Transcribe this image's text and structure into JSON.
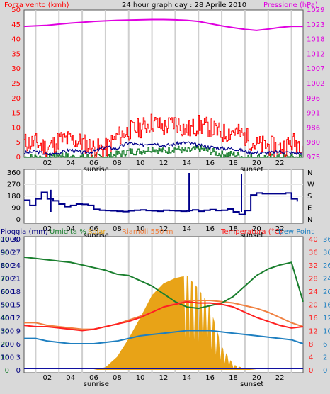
{
  "header": {
    "left": "Forza vento (kmh)",
    "center": "24 hour graph day : 28 Aprile 2010",
    "right": "Pressione (hPa)"
  },
  "x_axis": {
    "hours": [
      "02",
      "04",
      "06",
      "08",
      "10",
      "12",
      "14",
      "16",
      "18",
      "20",
      "22"
    ],
    "sunrise": "sunrise",
    "sunset": "sunset"
  },
  "colors": {
    "wind_label": "#ff0000",
    "pressure": "#e000e0",
    "gust": "#ff0000",
    "dir": "#00008b",
    "humidity": "#1a7f2e",
    "solar": "#e8a317",
    "temp": "#ff2020",
    "dew": "#1e7fc0",
    "riamoli": "#f08040",
    "rain": "#1010a0",
    "axis_left2": "#000080"
  },
  "panel2": {
    "compass": [
      "N",
      "W",
      "S",
      "E",
      "N"
    ]
  },
  "panel3": {
    "labels": {
      "rain": "Pioggia (mm)",
      "humidity": "Umidita %",
      "solar": "Solar",
      "riamoli": "Riamoli 550 m",
      "temp": "Temperatura (°C)",
      "dew": "Dew Point"
    }
  },
  "chart_data": [
    {
      "type": "line",
      "title": "24 hour graph day : 28 Aprile 2010",
      "ylabel": "Forza vento (kmh)",
      "y2label": "Pressione (hPa)",
      "ylim": [
        0,
        50
      ],
      "y_ticks": [
        0,
        5,
        10,
        15,
        20,
        25,
        30,
        35,
        40,
        45,
        50
      ],
      "y2_ticks": [
        975,
        980,
        986,
        991,
        996,
        1002,
        1007,
        1012,
        1018,
        1023,
        1029
      ],
      "y2lim": [
        975,
        1029
      ],
      "x": [
        0,
        1,
        2,
        3,
        4,
        5,
        6,
        7,
        8,
        9,
        10,
        11,
        12,
        13,
        14,
        15,
        16,
        17,
        18,
        19,
        20,
        21,
        22,
        23,
        24
      ],
      "series": [
        {
          "name": "Pressione (hPa)",
          "values": [
            1023,
            1023.2,
            1023.4,
            1023.8,
            1024.2,
            1024.5,
            1024.8,
            1025,
            1025.2,
            1025.3,
            1025.4,
            1025.5,
            1025.5,
            1025.4,
            1025.2,
            1024.8,
            1024,
            1023.2,
            1022.5,
            1021.9,
            1021.5,
            1022,
            1022.6,
            1023,
            1023
          ]
        },
        {
          "name": "raffica",
          "values": [
            5,
            5,
            3,
            6,
            6,
            5,
            3,
            3,
            7,
            9,
            10,
            12,
            10,
            12,
            9,
            11,
            10,
            8,
            9,
            7,
            4,
            4,
            3,
            5,
            5
          ]
        },
        {
          "name": "vento medio",
          "values": [
            1.5,
            2,
            1,
            1.5,
            2.5,
            1.5,
            2,
            3.5,
            3,
            5,
            4,
            5,
            4,
            4.5,
            5,
            4,
            3.5,
            3,
            3,
            2,
            1.5,
            1.5,
            2,
            1.5,
            1.5
          ]
        },
        {
          "name": "vento min",
          "values": [
            0,
            0,
            0,
            1,
            0,
            0,
            0,
            0,
            1,
            2,
            2,
            3,
            2,
            3,
            2,
            3,
            2,
            1,
            1,
            0,
            0,
            0,
            0,
            0,
            0
          ]
        }
      ]
    },
    {
      "type": "line",
      "ylabel": "",
      "ylim": [
        0,
        360
      ],
      "y_ticks": [
        0,
        90,
        180,
        270,
        360
      ],
      "x": [
        0,
        0.5,
        1,
        1.5,
        2,
        2.5,
        3,
        3.5,
        4,
        4.5,
        5,
        5.5,
        6,
        6.5,
        7,
        7.5,
        8,
        8.5,
        9,
        9.5,
        10,
        10.5,
        11,
        11.5,
        12,
        12.5,
        13,
        13.5,
        14,
        14.5,
        15,
        15.5,
        16,
        16.5,
        17,
        17.5,
        18,
        18.5,
        19,
        19.5,
        20,
        20.5,
        21,
        21.5,
        22,
        22.5,
        23,
        23.5
      ],
      "series": [
        {
          "name": "direzione",
          "values": [
            150,
            110,
            160,
            210,
            160,
            145,
            120,
            100,
            110,
            120,
            118,
            110,
            80,
            72,
            70,
            68,
            65,
            62,
            68,
            72,
            75,
            70,
            68,
            65,
            72,
            70,
            68,
            65,
            70,
            75,
            65,
            72,
            78,
            70,
            72,
            82,
            60,
            40,
            70,
            190,
            205,
            200,
            200,
            200,
            200,
            205,
            160,
            140
          ]
        }
      ]
    },
    {
      "type": "line",
      "ylim": [
        0,
        100
      ],
      "y_ticks_left": [
        0,
        10,
        20,
        30,
        40,
        50,
        60,
        70,
        80,
        90,
        100
      ],
      "y_ticks_rain": [
        0,
        3,
        6,
        9,
        12,
        15,
        18,
        21,
        24,
        27,
        30
      ],
      "y_ticks_solar": [
        0,
        100,
        200,
        300,
        400,
        500,
        600,
        700,
        800,
        900,
        1000
      ],
      "y_ticks_temp": [
        0,
        4,
        8,
        12,
        16,
        20,
        24,
        28,
        32,
        36,
        40
      ],
      "y_ticks_dew": [
        0,
        2,
        6,
        10,
        12,
        16,
        20,
        24,
        26,
        30,
        36
      ],
      "x": [
        0,
        1,
        2,
        3,
        4,
        5,
        6,
        7,
        8,
        9,
        10,
        11,
        12,
        13,
        14,
        15,
        16,
        17,
        18,
        19,
        20,
        21,
        22,
        23,
        24
      ],
      "series": [
        {
          "name": "Umidita %",
          "values": [
            86,
            85,
            84,
            83,
            82,
            80,
            78,
            76,
            73,
            72,
            68,
            64,
            58,
            52,
            48,
            47,
            49,
            51,
            56,
            64,
            72,
            77,
            80,
            82,
            52
          ]
        },
        {
          "name": "Temperatura (°C)",
          "values": [
            34,
            33,
            33,
            32,
            31,
            30,
            31,
            33,
            35,
            37,
            40,
            44,
            48,
            50,
            52,
            51,
            51,
            50,
            48,
            44,
            40,
            37,
            34,
            32,
            33
          ]
        },
        {
          "name": "Riamoli 550 m",
          "values": [
            36,
            36,
            34,
            33,
            32,
            31,
            31,
            33,
            35,
            38,
            41,
            44,
            48,
            51,
            53,
            53,
            53,
            52,
            51,
            49,
            47,
            44,
            40,
            36,
            33
          ]
        },
        {
          "name": "Dew Point",
          "values": [
            24,
            24,
            22,
            21,
            20,
            20,
            20,
            21,
            22,
            24,
            26,
            27,
            28,
            29,
            30,
            30,
            30,
            29,
            28,
            27,
            26,
            25,
            24,
            23,
            20
          ]
        },
        {
          "name": "Solar",
          "values": [
            0,
            0,
            0,
            0,
            0,
            0,
            0,
            2,
            10,
            24,
            40,
            57,
            66,
            70,
            72,
            62,
            48,
            18,
            4,
            1,
            0,
            0,
            0,
            0,
            0
          ]
        },
        {
          "name": "Pioggia (mm)",
          "values": [
            0,
            0,
            0,
            0,
            0,
            0,
            0,
            0,
            0,
            0,
            0,
            0,
            0,
            0,
            0,
            0,
            0,
            0,
            0,
            0,
            0,
            0,
            0,
            0,
            0
          ]
        }
      ]
    }
  ]
}
